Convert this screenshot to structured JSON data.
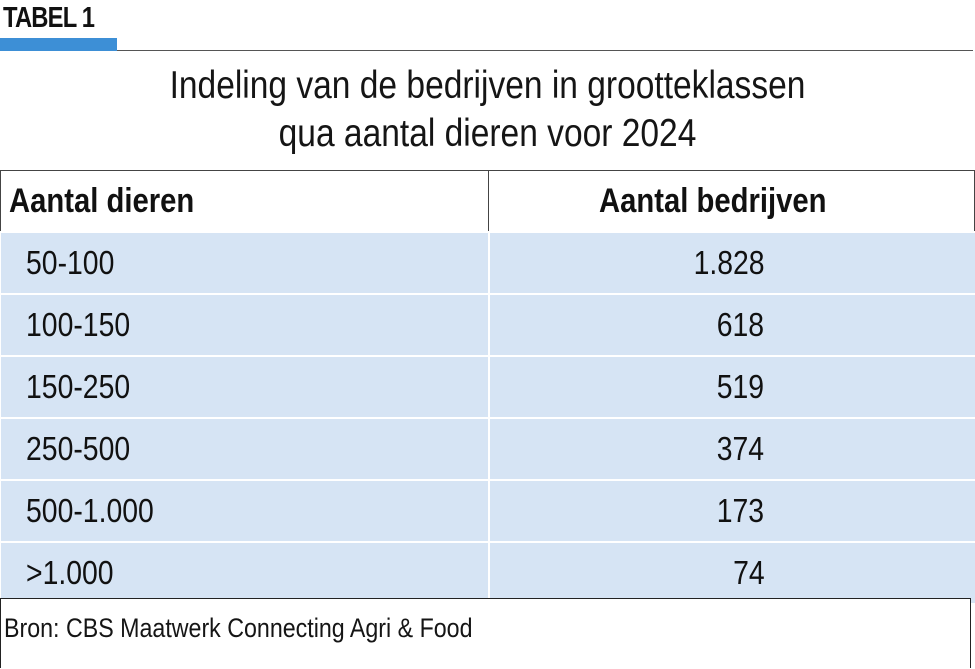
{
  "tag": "TABEL 1",
  "title_lines": [
    "Indeling van de bedrijven in grootteklassen",
    "qua aantal dieren voor 2024"
  ],
  "table": {
    "headers": [
      "Aantal dieren",
      "Aantal bedrijven"
    ],
    "rows": [
      [
        "50-100",
        "1.828"
      ],
      [
        "100-150",
        "618"
      ],
      [
        "150-250",
        "519"
      ],
      [
        "250-500",
        "374"
      ],
      [
        "500-1.000",
        "173"
      ],
      [
        ">1.000",
        "74"
      ]
    ]
  },
  "source": "Bron: CBS Maatwerk Connecting Agri & Food",
  "colors": {
    "accent_bar": "#3d8fd6",
    "row_background": "#d6e4f4"
  }
}
